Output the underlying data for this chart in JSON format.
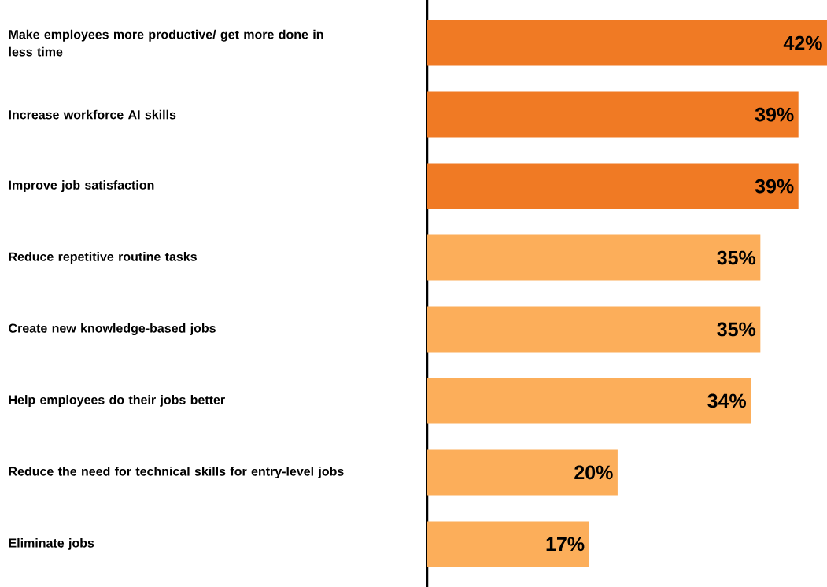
{
  "chart_data": {
    "type": "bar",
    "orientation": "horizontal",
    "tick_labels": "y",
    "categories": [
      "Make employees more productive/ get more done in less time",
      "Increase workforce AI skills",
      "Improve job satisfaction",
      "Reduce repetitive routine tasks",
      "Create new knowledge-based jobs",
      "Help employees do their jobs better",
      "Reduce the need for technical skills for entry-level jobs",
      "Eliminate jobs"
    ],
    "values": [
      42,
      39,
      39,
      35,
      35,
      34,
      20,
      17
    ],
    "value_labels": [
      "42%",
      "39%",
      "39%",
      "35%",
      "35%",
      "34%",
      "20%",
      "17%"
    ],
    "colors": [
      "#f07a24",
      "#f07a24",
      "#f07a24",
      "#fcae5a",
      "#fcae5a",
      "#fcae5a",
      "#fcae5a",
      "#fcae5a"
    ]
  }
}
